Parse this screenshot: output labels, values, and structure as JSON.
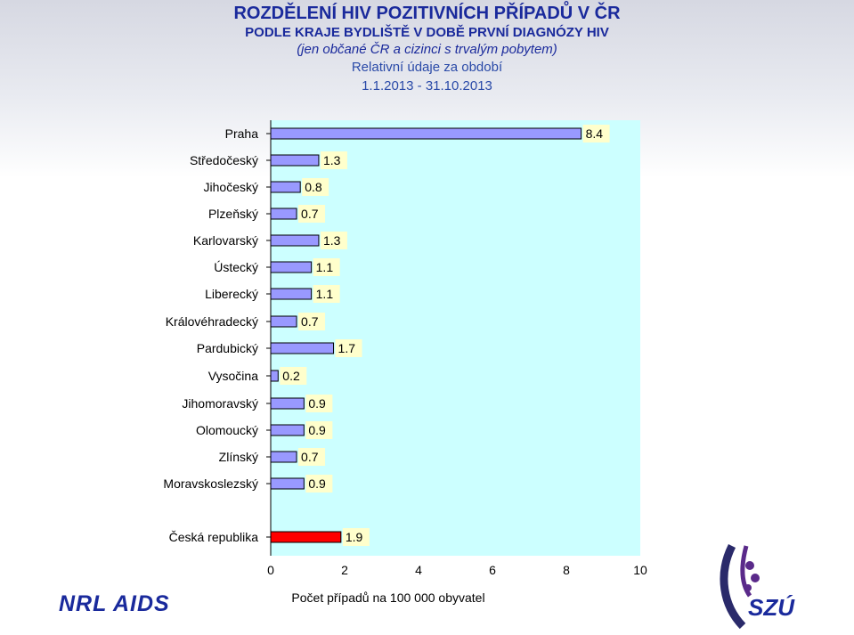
{
  "header": {
    "title": "ROZDĚLENÍ HIV POZITIVNÍCH PŘÍPADŮ V ČR",
    "subtitle": "PODLE KRAJE BYDLIŠTĚ V DOBĚ PRVNÍ DIAGNÓZY HIV",
    "note": "(jen občané ČR a cizinci s trvalým pobytem)",
    "measure": "Relativní údaje za období",
    "period": "1.1.2013 - 31.10.2013"
  },
  "chart_data": {
    "type": "bar",
    "orientation": "horizontal",
    "categories": [
      "Praha",
      "Středočeský",
      "Jihočeský",
      "Plzeňský",
      "Karlovarský",
      "Ústecký",
      "Liberecký",
      "Královéhradecký",
      "Pardubický",
      "Vysočina",
      "Jihomoravský",
      "Olomoucký",
      "Zlínský",
      "Moravskoslezský",
      "Česká republika"
    ],
    "values": [
      8.4,
      1.3,
      0.8,
      0.7,
      1.3,
      1.1,
      1.1,
      0.7,
      1.7,
      0.2,
      0.9,
      0.9,
      0.7,
      0.9,
      1.9
    ],
    "value_labels": [
      "8.4",
      "1.3",
      "0.8",
      "0.7",
      "1.3",
      "1.1",
      "1.1",
      "0.7",
      "1.7",
      "0.2",
      "0.9",
      "0.9",
      "0.7",
      "0.9",
      "1.9"
    ],
    "highlight_category": "Česká republika",
    "xlabel": "Počet případů na 100 000 obyvatel",
    "xlim": [
      0,
      10
    ],
    "xticks": [
      "0",
      "2",
      "4",
      "6",
      "8",
      "10"
    ],
    "grid": false,
    "colors": {
      "bar": "#9999ff",
      "highlight_bar": "#ff0000",
      "plot_bg": "#ccffff",
      "label_bg": "#ffffcc"
    }
  },
  "logos": {
    "left": "NRL AIDS",
    "right": "SZÚ"
  }
}
